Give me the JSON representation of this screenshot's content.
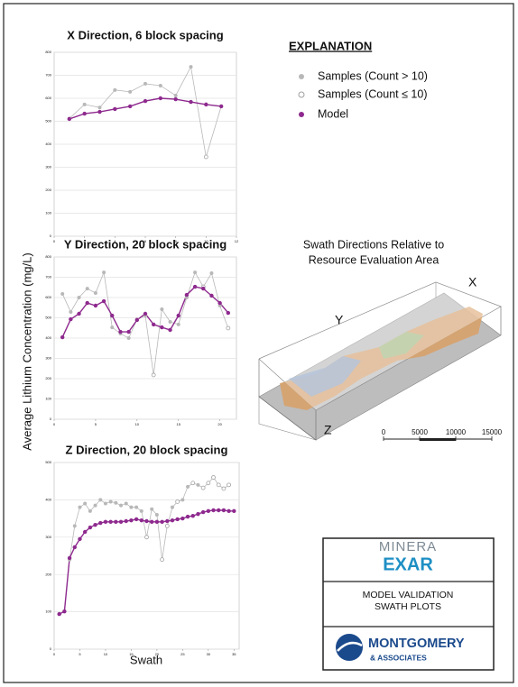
{
  "chart_data": [
    {
      "type": "line",
      "title": "X Direction, 6 block spacing",
      "x": [
        1,
        2,
        3,
        4,
        5,
        6,
        7,
        8,
        9,
        10,
        11
      ],
      "xlim": [
        0,
        12
      ],
      "xticks": [
        0,
        2,
        4,
        6,
        8,
        10,
        12
      ],
      "ylim": [
        0,
        800
      ],
      "yticks": [
        0,
        100,
        200,
        300,
        400,
        500,
        600,
        700,
        800
      ],
      "grid": true,
      "series": [
        {
          "name": "Samples (Count > 10)",
          "color": "#b8b8b8",
          "values": [
            512,
            573,
            560,
            636,
            628,
            663,
            655,
            612,
            737,
            null,
            565
          ]
        },
        {
          "name": "Samples (Count ≤ 10)",
          "color": "#a0a0a0",
          "values": [
            null,
            null,
            null,
            null,
            null,
            null,
            null,
            null,
            null,
            345,
            null
          ]
        },
        {
          "name": "Model",
          "color": "#8e2a8e",
          "values": [
            510,
            533,
            541,
            553,
            565,
            588,
            600,
            596,
            584,
            573,
            565
          ]
        }
      ]
    },
    {
      "type": "line",
      "title": "Y Direction, 20 block spacing",
      "x": [
        1,
        2,
        3,
        4,
        5,
        6,
        7,
        8,
        9,
        10,
        11,
        12,
        13,
        14,
        15,
        16,
        17,
        18,
        19,
        20,
        21
      ],
      "xlim": [
        0,
        22
      ],
      "xticks": [
        0,
        5,
        10,
        15,
        20
      ],
      "ylim": [
        0,
        800
      ],
      "yticks": [
        0,
        100,
        200,
        300,
        400,
        500,
        600,
        700,
        800
      ],
      "grid": true,
      "series": [
        {
          "color": "#b8b8b8",
          "values": [
            618,
            529,
            600,
            644,
            622,
            724,
            453,
            422,
            400,
            493,
            511,
            null,
            542,
            480,
            467,
            600,
            724,
            null,
            720,
            560,
            null
          ]
        },
        {
          "color": "#a0a0a0",
          "values": [
            null,
            null,
            null,
            null,
            null,
            null,
            null,
            null,
            null,
            null,
            null,
            218,
            null,
            null,
            null,
            null,
            null,
            653,
            null,
            null,
            449
          ]
        },
        {
          "color": "#8e2a8e",
          "values": [
            404,
            493,
            520,
            573,
            560,
            582,
            511,
            431,
            431,
            489,
            520,
            467,
            453,
            440,
            511,
            613,
            653,
            644,
            609,
            573,
            524
          ]
        }
      ]
    },
    {
      "type": "line",
      "title": "Z Direction, 20 block spacing",
      "x": [
        1,
        2,
        3,
        4,
        5,
        6,
        7,
        8,
        9,
        10,
        11,
        12,
        13,
        14,
        15,
        16,
        17,
        18,
        19,
        20,
        21,
        22,
        23,
        24,
        25,
        26,
        27,
        28,
        29,
        30,
        31,
        32,
        33,
        34,
        35
      ],
      "xlim": [
        0,
        36
      ],
      "xticks": [
        0,
        5,
        10,
        15,
        20,
        25,
        30,
        35
      ],
      "ylim": [
        0,
        500
      ],
      "yticks": [
        0,
        100,
        200,
        300,
        400,
        500
      ],
      "grid": true,
      "series": [
        {
          "color": "#b8b8b8",
          "values": [
            94,
            101,
            240,
            330,
            380,
            390,
            370,
            385,
            400,
            390,
            395,
            392,
            385,
            390,
            380,
            380,
            370,
            null,
            375,
            360,
            null,
            null,
            380,
            null,
            400,
            435,
            null,
            440,
            null,
            null,
            null,
            null,
            null,
            null,
            null
          ]
        },
        {
          "color": "#a0a0a0",
          "values": [
            null,
            null,
            null,
            null,
            null,
            null,
            null,
            null,
            null,
            null,
            null,
            null,
            null,
            null,
            null,
            null,
            null,
            300,
            null,
            null,
            240,
            330,
            null,
            395,
            null,
            null,
            445,
            null,
            432,
            445,
            460,
            440,
            430,
            440,
            null
          ]
        },
        {
          "color": "#8e2a8e",
          "values": [
            94,
            101,
            244,
            273,
            295,
            314,
            326,
            333,
            338,
            341,
            341,
            341,
            341,
            343,
            345,
            348,
            345,
            343,
            341,
            341,
            341,
            343,
            345,
            348,
            350,
            355,
            357,
            362,
            367,
            370,
            372,
            372,
            372,
            370,
            370
          ]
        }
      ]
    }
  ],
  "axis_labels": {
    "y": "Average Lithium Concentration (mg/L)",
    "x": "Swath"
  },
  "legend": {
    "title": "EXPLANATION"
  },
  "diagram": {
    "title_lines": [
      "Swath Directions Relative to",
      "Resource Evaluation Area"
    ],
    "x_label": "X",
    "y_label": "Y",
    "z_label": "Z",
    "scale_bar": [
      0,
      5000,
      10000,
      15000
    ]
  },
  "title_block": {
    "logo_top": "MINERA",
    "logo_bottom": "EXAR",
    "lines": [
      "MODEL VALIDATION",
      "SWATH PLOTS"
    ],
    "firm": "MONTGOMERY",
    "firm_sub": "& ASSOCIATES"
  }
}
